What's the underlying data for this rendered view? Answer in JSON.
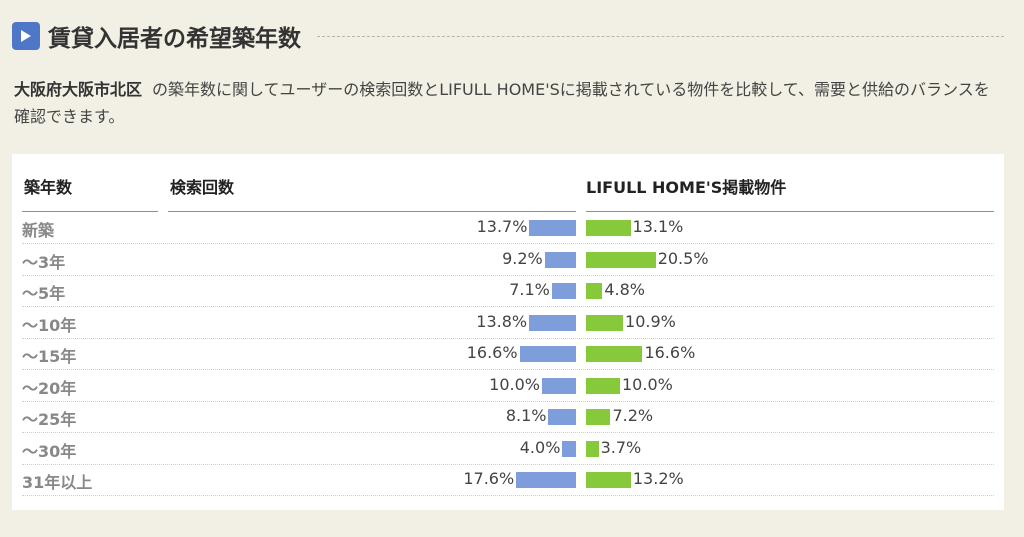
{
  "heading": {
    "title": "賃貸入居者の希望築年数",
    "icon": "play-triangle-icon",
    "icon_color": "#4f77c8"
  },
  "description": {
    "area": "大阪府大阪市北区",
    "text": "の築年数に関してユーザーの検索回数とLIFULL HOME'Sに掲載されている物件を比較して、需要と供給のバランスを確認できます。"
  },
  "colors": {
    "search_bar": "#7d9edb",
    "listing_bar": "#86c93b",
    "background": "#f2f0e4"
  },
  "table": {
    "headers": {
      "age": "築年数",
      "search": "検索回数",
      "listings": "LIFULL HOME'S掲載物件"
    }
  },
  "chart_data": {
    "type": "bar",
    "categories": [
      "新築",
      "〜3年",
      "〜5年",
      "〜10年",
      "〜15年",
      "〜20年",
      "〜25年",
      "〜30年",
      "31年以上"
    ],
    "series": [
      {
        "name": "検索回数",
        "values": [
          13.7,
          9.2,
          7.1,
          13.8,
          16.6,
          10.0,
          8.1,
          4.0,
          17.6
        ],
        "labels": [
          "13.7%",
          "9.2%",
          "7.1%",
          "13.8%",
          "16.6%",
          "10.0%",
          "8.1%",
          "4.0%",
          "17.6%"
        ]
      },
      {
        "name": "LIFULL HOME'S掲載物件",
        "values": [
          13.1,
          20.5,
          4.8,
          10.9,
          16.6,
          10.0,
          7.2,
          3.7,
          13.2
        ],
        "labels": [
          "13.1%",
          "20.5%",
          "4.8%",
          "10.9%",
          "16.6%",
          "10.0%",
          "7.2%",
          "3.7%",
          "13.2%"
        ]
      }
    ],
    "unit": "%"
  }
}
